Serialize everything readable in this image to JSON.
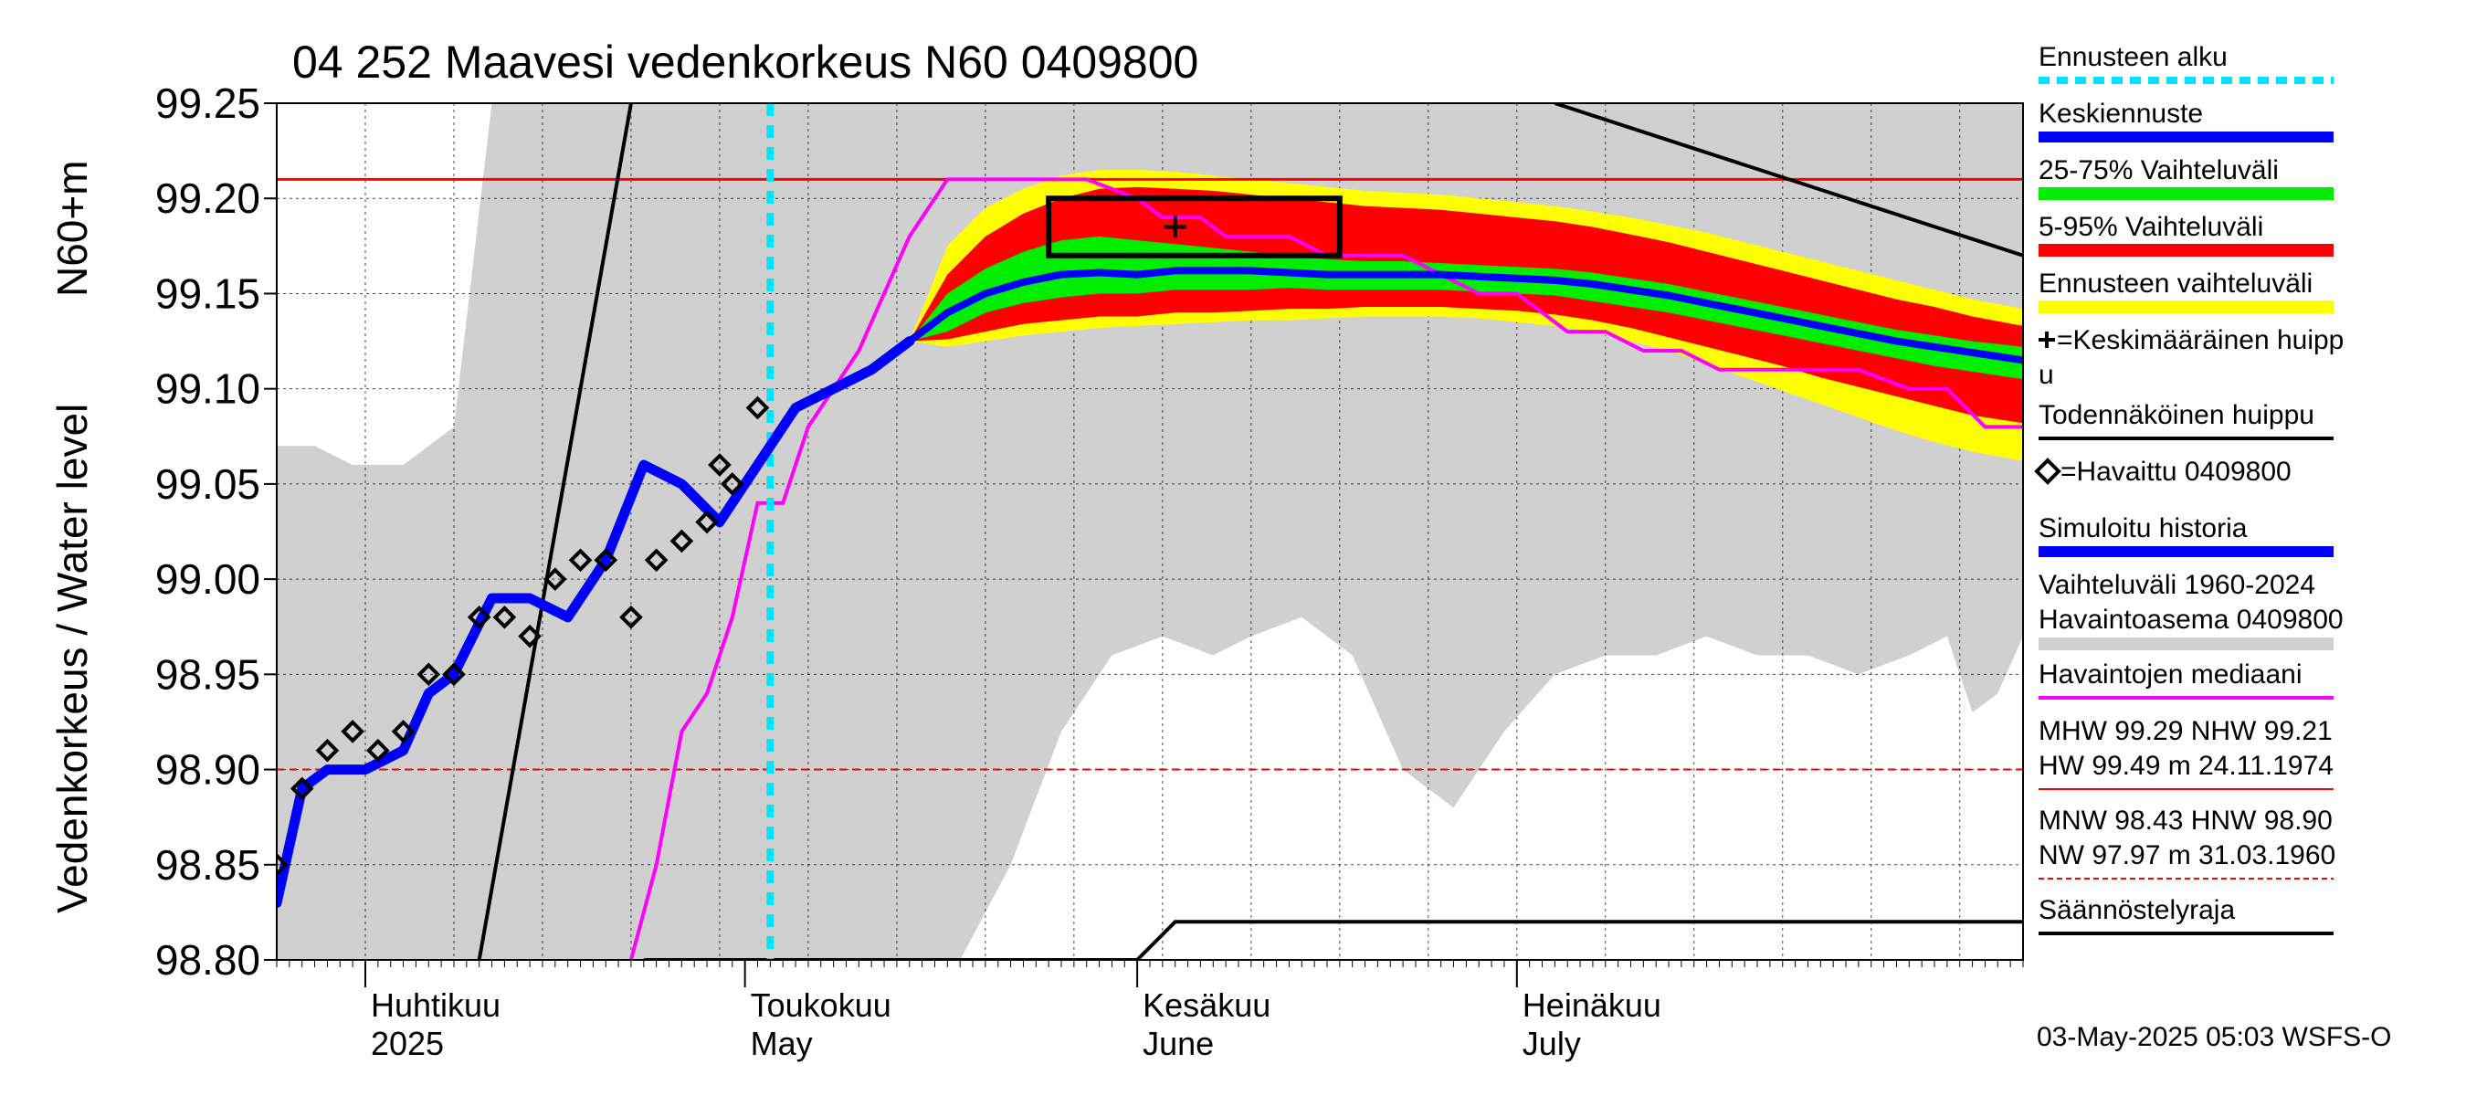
{
  "chart_data": {
    "type": "area",
    "title": "04 252 Maavesi vedenkorkeus N60 0409800",
    "ylabel_outer": "Vedenkorkeus / Water level",
    "ylabel_inner": "N60+m",
    "ylim": [
      98.8,
      99.25
    ],
    "y_ticks": [
      "98.80",
      "98.85",
      "98.90",
      "98.95",
      "99.00",
      "99.05",
      "99.10",
      "99.15",
      "99.20",
      "99.25"
    ],
    "x_start": "2025-03-25",
    "x_end": "2025-08-10",
    "forecast_start": "2025-05-03",
    "months": [
      {
        "fi": "Huhtikuu",
        "en": "2025",
        "date": "2025-04-01"
      },
      {
        "fi": "Toukokuu",
        "en": "May",
        "date": "2025-05-01"
      },
      {
        "fi": "Kesäkuu",
        "en": "June",
        "date": "2025-06-01"
      },
      {
        "fi": "Heinäkuu",
        "en": "July",
        "date": "2025-07-01"
      }
    ],
    "hline_red_solid": 99.21,
    "hline_red_dashed": 98.9,
    "history_band": {
      "x": [
        "2025-03-25",
        "2025-03-28",
        "2025-03-31",
        "2025-04-04",
        "2025-04-06",
        "2025-04-08",
        "2025-04-11",
        "2025-04-14",
        "2025-04-17",
        "2025-04-21",
        "2025-04-25",
        "2025-04-29",
        "2025-05-02",
        "2025-05-06",
        "2025-05-10",
        "2025-05-14",
        "2025-05-18",
        "2025-05-22",
        "2025-05-26",
        "2025-05-30",
        "2025-06-03",
        "2025-06-07",
        "2025-06-10",
        "2025-06-14",
        "2025-06-18",
        "2025-06-22",
        "2025-06-26",
        "2025-06-30",
        "2025-07-04",
        "2025-07-08",
        "2025-07-12",
        "2025-07-16",
        "2025-07-20",
        "2025-07-24",
        "2025-07-28",
        "2025-08-01",
        "2025-08-04",
        "2025-08-06",
        "2025-08-08",
        "2025-08-10"
      ],
      "upper": [
        99.07,
        99.07,
        99.06,
        99.06,
        99.07,
        99.08,
        99.25,
        99.25,
        99.25,
        99.25,
        99.25,
        99.25,
        99.25,
        99.25,
        99.25,
        99.25,
        99.25,
        99.25,
        99.25,
        99.25,
        99.25,
        99.25,
        99.25,
        99.25,
        99.25,
        99.25,
        99.25,
        99.25,
        99.25,
        99.25,
        99.25,
        99.25,
        99.25,
        99.25,
        99.25,
        99.25,
        99.25,
        99.25,
        99.25,
        99.25
      ],
      "lower": [
        98.8,
        98.8,
        98.8,
        98.8,
        98.8,
        98.8,
        98.8,
        98.8,
        98.8,
        98.8,
        98.8,
        98.8,
        98.8,
        98.8,
        98.8,
        98.8,
        98.8,
        98.85,
        98.92,
        98.96,
        98.97,
        98.96,
        98.97,
        98.98,
        98.96,
        98.9,
        98.88,
        98.92,
        98.95,
        98.96,
        98.96,
        98.97,
        98.96,
        98.96,
        98.95,
        98.96,
        98.97,
        98.93,
        98.94,
        98.97
      ]
    },
    "observed_marker_name": "Havaittu 0409800",
    "observed": {
      "x": [
        "2025-03-25",
        "2025-03-27",
        "2025-03-29",
        "2025-03-31",
        "2025-04-02",
        "2025-04-04",
        "2025-04-06",
        "2025-04-08",
        "2025-04-10",
        "2025-04-12",
        "2025-04-14",
        "2025-04-16",
        "2025-04-18",
        "2025-04-20",
        "2025-04-22",
        "2025-04-24",
        "2025-04-26",
        "2025-04-28",
        "2025-04-29",
        "2025-04-30",
        "2025-05-02"
      ],
      "y": [
        98.85,
        98.89,
        98.91,
        98.92,
        98.91,
        98.92,
        98.95,
        98.95,
        98.98,
        98.98,
        98.97,
        99.0,
        99.01,
        99.01,
        98.98,
        99.01,
        99.02,
        99.03,
        99.06,
        99.05,
        99.09
      ]
    },
    "simulated_history": {
      "x": [
        "2025-03-25",
        "2025-03-27",
        "2025-03-29",
        "2025-04-01",
        "2025-04-04",
        "2025-04-06",
        "2025-04-08",
        "2025-04-11",
        "2025-04-14",
        "2025-04-17",
        "2025-04-20",
        "2025-04-23",
        "2025-04-26",
        "2025-04-29",
        "2025-05-02",
        "2025-05-05",
        "2025-05-08",
        "2025-05-11",
        "2025-05-14"
      ],
      "y": [
        98.83,
        98.89,
        98.9,
        98.9,
        98.91,
        98.94,
        98.95,
        98.99,
        98.99,
        98.98,
        99.01,
        99.06,
        99.05,
        99.03,
        99.06,
        99.09,
        99.1,
        99.11,
        99.125
      ]
    },
    "observed_median": {
      "x": [
        "2025-04-22",
        "2025-04-24",
        "2025-04-26",
        "2025-04-28",
        "2025-04-30",
        "2025-05-02",
        "2025-05-04",
        "2025-05-06",
        "2025-05-08",
        "2025-05-10",
        "2025-05-12",
        "2025-05-14",
        "2025-05-15",
        "2025-05-17",
        "2025-05-19",
        "2025-05-22",
        "2025-05-25",
        "2025-05-28",
        "2025-06-01",
        "2025-06-03",
        "2025-06-06",
        "2025-06-08",
        "2025-06-10",
        "2025-06-13",
        "2025-06-16",
        "2025-06-19",
        "2025-06-22",
        "2025-06-25",
        "2025-06-28",
        "2025-07-01",
        "2025-07-05",
        "2025-07-08",
        "2025-07-11",
        "2025-07-14",
        "2025-07-17",
        "2025-07-20",
        "2025-07-24",
        "2025-07-28",
        "2025-08-01",
        "2025-08-04",
        "2025-08-07",
        "2025-08-10"
      ],
      "y": [
        98.8,
        98.85,
        98.92,
        98.94,
        98.98,
        99.04,
        99.04,
        99.08,
        99.1,
        99.12,
        99.15,
        99.18,
        99.19,
        99.21,
        99.21,
        99.21,
        99.21,
        99.21,
        99.2,
        99.19,
        99.19,
        99.18,
        99.18,
        99.18,
        99.17,
        99.17,
        99.17,
        99.16,
        99.15,
        99.15,
        99.13,
        99.13,
        99.12,
        99.12,
        99.11,
        99.11,
        99.11,
        99.11,
        99.1,
        99.1,
        99.08,
        99.08
      ]
    },
    "forecast": {
      "x": [
        "2025-05-14",
        "2025-05-17",
        "2025-05-20",
        "2025-05-23",
        "2025-05-26",
        "2025-05-29",
        "2025-06-01",
        "2025-06-04",
        "2025-06-07",
        "2025-06-10",
        "2025-06-13",
        "2025-06-16",
        "2025-06-19",
        "2025-06-22",
        "2025-06-25",
        "2025-06-28",
        "2025-07-01",
        "2025-07-04",
        "2025-07-07",
        "2025-07-10",
        "2025-07-13",
        "2025-07-16",
        "2025-07-19",
        "2025-07-22",
        "2025-07-25",
        "2025-07-28",
        "2025-07-31",
        "2025-08-03",
        "2025-08-06",
        "2025-08-10"
      ],
      "median": [
        99.125,
        99.14,
        99.15,
        99.156,
        99.16,
        99.161,
        99.16,
        99.162,
        99.162,
        99.162,
        99.161,
        99.16,
        99.16,
        99.16,
        99.16,
        99.159,
        99.158,
        99.157,
        99.155,
        99.152,
        99.149,
        99.145,
        99.141,
        99.137,
        99.133,
        99.129,
        99.125,
        99.122,
        99.119,
        99.115
      ],
      "p25": [
        99.125,
        99.13,
        99.14,
        99.145,
        99.148,
        99.15,
        99.15,
        99.152,
        99.152,
        99.152,
        99.153,
        99.152,
        99.152,
        99.152,
        99.152,
        99.151,
        99.15,
        99.149,
        99.146,
        99.143,
        99.14,
        99.136,
        99.132,
        99.128,
        99.124,
        99.12,
        99.116,
        99.112,
        99.109,
        99.105
      ],
      "p75": [
        99.125,
        99.15,
        99.163,
        99.172,
        99.178,
        99.18,
        99.178,
        99.176,
        99.174,
        99.172,
        99.17,
        99.168,
        99.167,
        99.167,
        99.166,
        99.165,
        99.164,
        99.163,
        99.161,
        99.158,
        99.155,
        99.151,
        99.147,
        99.143,
        99.139,
        99.135,
        99.131,
        99.128,
        99.125,
        99.122
      ],
      "p5": [
        99.125,
        99.126,
        99.13,
        99.134,
        99.136,
        99.138,
        99.138,
        99.14,
        99.14,
        99.141,
        99.142,
        99.142,
        99.143,
        99.143,
        99.143,
        99.142,
        99.141,
        99.139,
        99.136,
        99.132,
        99.127,
        99.122,
        99.117,
        99.112,
        99.106,
        99.101,
        99.096,
        99.091,
        99.086,
        99.082
      ],
      "p95": [
        99.125,
        99.16,
        99.18,
        99.192,
        99.2,
        99.205,
        99.206,
        99.205,
        99.204,
        99.202,
        99.2,
        99.198,
        99.196,
        99.195,
        99.194,
        99.192,
        99.19,
        99.188,
        99.185,
        99.181,
        99.177,
        99.172,
        99.167,
        99.162,
        99.157,
        99.152,
        99.147,
        99.143,
        99.138,
        99.133
      ],
      "min": [
        99.125,
        99.122,
        99.125,
        99.128,
        99.13,
        99.132,
        99.133,
        99.134,
        99.135,
        99.136,
        99.136,
        99.137,
        99.138,
        99.138,
        99.138,
        99.137,
        99.135,
        99.133,
        99.13,
        99.125,
        99.12,
        99.113,
        99.106,
        99.099,
        99.092,
        99.085,
        99.078,
        99.072,
        99.067,
        99.062
      ],
      "max": [
        99.125,
        99.175,
        99.195,
        99.205,
        99.212,
        99.215,
        99.215,
        99.214,
        99.212,
        99.21,
        99.208,
        99.206,
        99.204,
        99.203,
        99.202,
        99.2,
        99.198,
        99.196,
        99.193,
        99.19,
        99.186,
        99.182,
        99.177,
        99.172,
        99.167,
        99.162,
        99.157,
        99.152,
        99.147,
        99.142
      ]
    },
    "probable_peak_box": {
      "x": [
        "2025-05-25",
        "2025-06-17"
      ],
      "y": [
        99.17,
        99.2
      ]
    },
    "mean_peak": {
      "x": "2025-06-04",
      "y": 99.185
    },
    "black_lines": [
      {
        "x": [
          "2025-04-10",
          "2025-04-22"
        ],
        "y": [
          98.8,
          99.25
        ]
      },
      {
        "x": [
          "2025-07-04",
          "2025-08-10"
        ],
        "y": [
          99.25,
          99.17
        ]
      }
    ],
    "regulation_limit": {
      "x": [
        "2025-04-23",
        "2025-06-01",
        "2025-06-01",
        "2025-06-04",
        "2025-08-10"
      ],
      "y": [
        98.8,
        98.8,
        98.8,
        98.82,
        98.82
      ]
    },
    "colors": {
      "history_band": "#d0d0d0",
      "ennuste": "#ffff00",
      "p5_95": "#ff0000",
      "p25_75": "#00ee00",
      "median": "#0000ff",
      "simulated": "#0000ff",
      "observed_median": "#ff00ff",
      "forecast_start": "#00e5ff",
      "hline": "#ff0000",
      "black": "#000000"
    },
    "legend": [
      {
        "label": "Ennusteen alku",
        "style": "dash-cyan"
      },
      {
        "label": "Keskiennuste",
        "style": "blue"
      },
      {
        "label": "25-75% Vaihteluväli",
        "style": "green"
      },
      {
        "label": "5-95% Vaihteluväli",
        "style": "red"
      },
      {
        "label": "Ennusteen vaihteluväli",
        "style": "yellow"
      },
      {
        "label": "=Keskimääräinen huipp",
        "label2": "u",
        "style": "plus"
      },
      {
        "label": "Todennäköinen huippu",
        "style": "black"
      },
      {
        "label": "=Havaittu 0409800",
        "style": "diamond"
      },
      {
        "label": "Simuloitu historia",
        "style": "blue"
      },
      {
        "label": "Vaihteluväli 1960-2024",
        "label2": " Havaintoasema 0409800",
        "style": "gray"
      },
      {
        "label": "Havaintojen mediaani",
        "style": "magenta"
      },
      {
        "label": "MHW  99.29 NHW  99.21",
        "label2": "HW  99.49 m 24.11.1974",
        "style": "red-solid"
      },
      {
        "label": "MNW  98.43 HNW  98.90",
        "label2": "NW  97.97 m 31.03.1960",
        "style": "red-dash"
      },
      {
        "label": "Säännöstelyraja",
        "style": "black"
      }
    ],
    "footer": "03-May-2025 05:03 WSFS-O"
  }
}
